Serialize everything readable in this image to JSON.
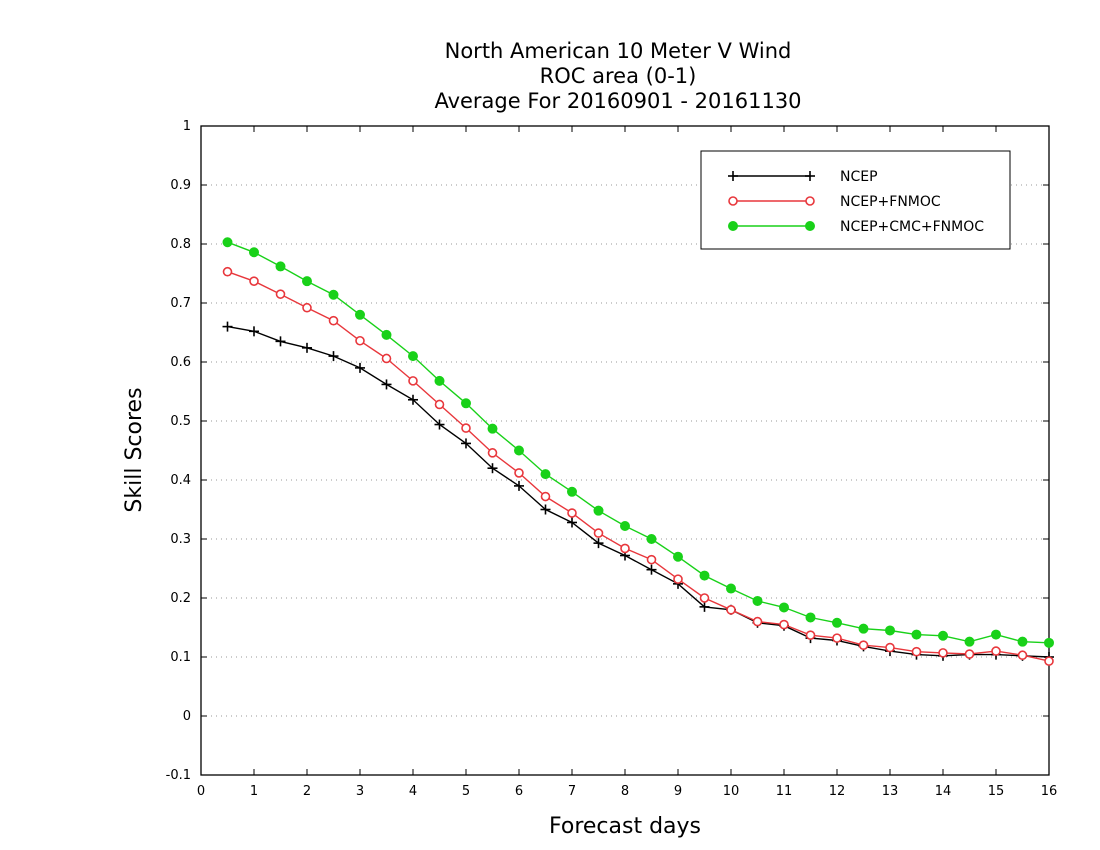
{
  "chart_data": {
    "type": "line",
    "title_lines": [
      "North American 10 Meter V Wind",
      "ROC area (0-1)",
      "Average For 20160901 - 20161130"
    ],
    "xlabel": "Forecast days",
    "ylabel": "Skill Scores",
    "xlim": [
      0,
      16
    ],
    "ylim": [
      -0.1,
      1
    ],
    "xticks": [
      "0",
      "1",
      "2",
      "3",
      "4",
      "5",
      "6",
      "7",
      "8",
      "9",
      "10",
      "11",
      "12",
      "13",
      "14",
      "15",
      "16"
    ],
    "yticks": [
      "-0.1",
      "0",
      "0.1",
      "0.2",
      "0.3",
      "0.4",
      "0.5",
      "0.6",
      "0.7",
      "0.8",
      "0.9",
      "1"
    ],
    "grid": true,
    "legend_position": "top-right",
    "x": [
      0.5,
      1,
      1.5,
      2,
      2.5,
      3,
      3.5,
      4,
      4.5,
      5,
      5.5,
      6,
      6.5,
      7,
      7.5,
      8,
      8.5,
      9,
      9.5,
      10,
      10.5,
      11,
      11.5,
      12,
      12.5,
      13,
      13.5,
      14,
      14.5,
      15,
      15.5,
      16
    ],
    "series": [
      {
        "name": "NCEP",
        "color": "#000000",
        "marker": "plus",
        "values": [
          0.66,
          0.652,
          0.635,
          0.624,
          0.61,
          0.59,
          0.562,
          0.536,
          0.494,
          0.462,
          0.42,
          0.39,
          0.35,
          0.328,
          0.293,
          0.272,
          0.248,
          0.224,
          0.185,
          0.18,
          0.158,
          0.153,
          0.132,
          0.128,
          0.118,
          0.11,
          0.104,
          0.102,
          0.104,
          0.104,
          0.102,
          0.1
        ]
      },
      {
        "name": "NCEP+FNMOC",
        "color": "#e8373c",
        "marker": "open-circle",
        "values": [
          0.753,
          0.737,
          0.715,
          0.692,
          0.67,
          0.636,
          0.606,
          0.568,
          0.528,
          0.488,
          0.446,
          0.412,
          0.372,
          0.344,
          0.31,
          0.284,
          0.265,
          0.232,
          0.2,
          0.18,
          0.16,
          0.155,
          0.137,
          0.132,
          0.12,
          0.116,
          0.109,
          0.107,
          0.105,
          0.11,
          0.103,
          0.093
        ]
      },
      {
        "name": "NCEP+CMC+FNMOC",
        "color": "#19d119",
        "marker": "filled-circle",
        "values": [
          0.803,
          0.786,
          0.762,
          0.737,
          0.714,
          0.68,
          0.646,
          0.61,
          0.568,
          0.53,
          0.487,
          0.45,
          0.41,
          0.38,
          0.348,
          0.322,
          0.3,
          0.27,
          0.238,
          0.216,
          0.195,
          0.184,
          0.167,
          0.158,
          0.148,
          0.145,
          0.138,
          0.136,
          0.126,
          0.138,
          0.126,
          0.124
        ]
      }
    ]
  }
}
